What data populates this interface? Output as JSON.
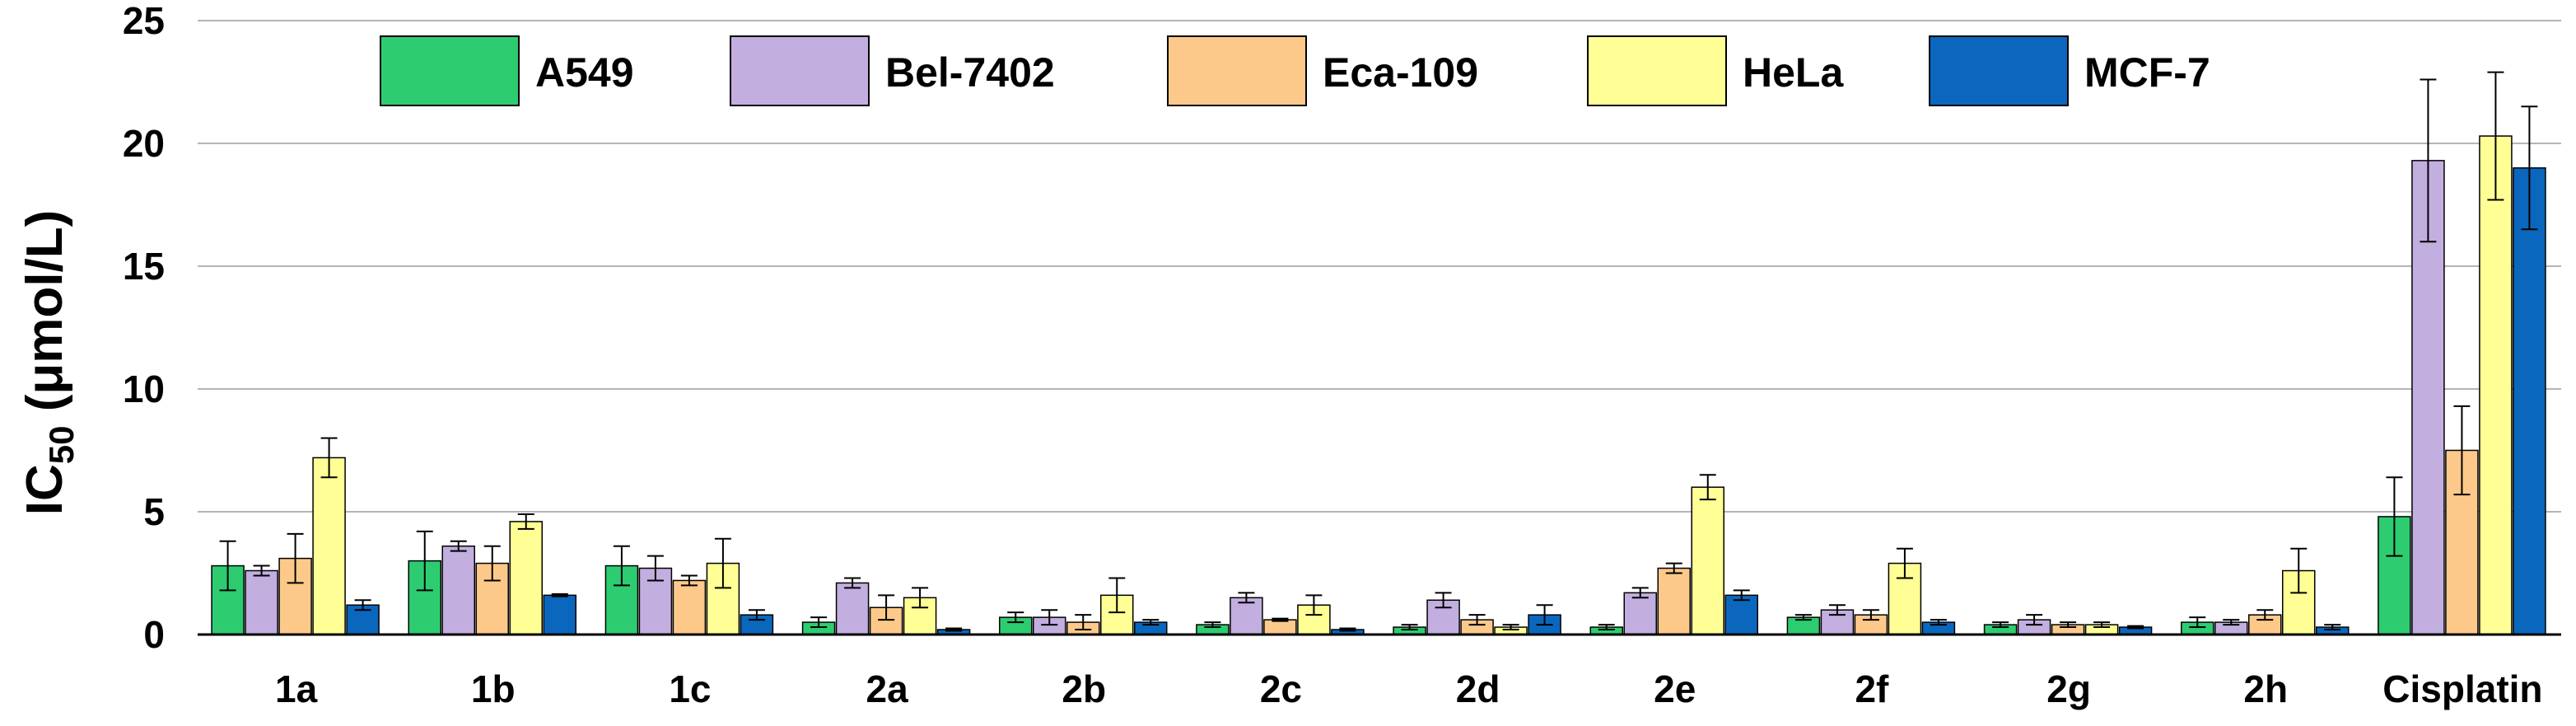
{
  "chart_data": {
    "type": "bar",
    "title": "",
    "xlabel": "",
    "ylabel": {
      "main": "IC",
      "sub": "50",
      "unit": " (μmol/L)"
    },
    "ylim": [
      0,
      25
    ],
    "yticks": [
      0,
      5,
      10,
      15,
      20,
      25
    ],
    "grid": true,
    "legend_position": "top",
    "categories": [
      "1a",
      "1b",
      "1c",
      "2a",
      "2b",
      "2c",
      "2d",
      "2e",
      "2f",
      "2g",
      "2h",
      "Cisplatin"
    ],
    "series": [
      {
        "name": "A549",
        "color": "#2ecc71",
        "values": [
          2.8,
          3.0,
          2.8,
          0.5,
          0.7,
          0.4,
          0.3,
          0.3,
          0.7,
          0.4,
          0.5,
          4.8
        ],
        "errors": [
          1.0,
          1.2,
          0.8,
          0.2,
          0.2,
          0.1,
          0.1,
          0.1,
          0.1,
          0.1,
          0.2,
          1.6
        ]
      },
      {
        "name": "Bel-7402",
        "color": "#c3aee0",
        "values": [
          2.6,
          3.6,
          2.7,
          2.1,
          0.7,
          1.5,
          1.4,
          1.7,
          1.0,
          0.6,
          0.5,
          19.3
        ],
        "errors": [
          0.2,
          0.2,
          0.5,
          0.2,
          0.3,
          0.2,
          0.3,
          0.2,
          0.2,
          0.2,
          0.1,
          3.3
        ]
      },
      {
        "name": "Eca-109",
        "color": "#fdc98a",
        "values": [
          3.1,
          2.9,
          2.2,
          1.1,
          0.5,
          0.6,
          0.6,
          2.7,
          0.8,
          0.4,
          0.8,
          7.5
        ],
        "errors": [
          1.0,
          0.7,
          0.2,
          0.5,
          0.3,
          0.05,
          0.2,
          0.2,
          0.2,
          0.1,
          0.2,
          1.8
        ]
      },
      {
        "name": "HeLa",
        "color": "#ffff96",
        "values": [
          7.2,
          4.6,
          2.9,
          1.5,
          1.6,
          1.2,
          0.3,
          6.0,
          2.9,
          0.4,
          2.6,
          20.3
        ],
        "errors": [
          0.8,
          0.3,
          1.0,
          0.4,
          0.7,
          0.4,
          0.1,
          0.5,
          0.6,
          0.1,
          0.9,
          2.6
        ]
      },
      {
        "name": "MCF-7",
        "color": "#0a67bd",
        "values": [
          1.2,
          1.6,
          0.8,
          0.2,
          0.5,
          0.2,
          0.8,
          1.6,
          0.5,
          0.3,
          0.3,
          19.0
        ],
        "errors": [
          0.2,
          0.05,
          0.2,
          0.05,
          0.1,
          0.05,
          0.4,
          0.2,
          0.1,
          0.05,
          0.1,
          2.5
        ]
      }
    ]
  }
}
